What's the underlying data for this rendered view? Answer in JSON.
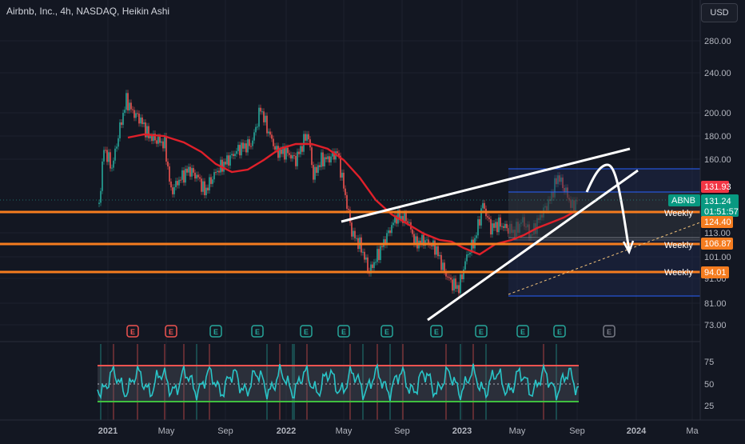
{
  "header": {
    "title": "Airbnb, Inc., 4h, NASDAQ, Heikin Ashi",
    "currency": "USD"
  },
  "price_axis": [
    "280.00",
    "240.00",
    "200.00",
    "180.00",
    "160.00",
    "113.00",
    "101.00",
    "91.00",
    "81.00",
    "73.00"
  ],
  "time_axis": [
    "2021",
    "May",
    "Sep",
    "2022",
    "May",
    "Sep",
    "2023",
    "May",
    "Sep",
    "2024",
    "Ma"
  ],
  "osc_axis": [
    "75",
    "50",
    "25"
  ],
  "tags": {
    "high": "131.93",
    "symbol": "ABNB",
    "last": "131.24",
    "countdown": "01:51:57",
    "level1": "124.40",
    "level2": "106.87",
    "level3": "94.01"
  },
  "weekly_label": "Weekly",
  "event_glyph": "E",
  "colors": {
    "background": "#131722",
    "bull": "#26a69a",
    "bear": "#ef5350",
    "ma": "#e0202a",
    "level": "#f57c1f",
    "oscillator": "#29c4c7",
    "event_red": "#ef5350",
    "event_teal": "#26a69a",
    "event_gray": "#787b86"
  },
  "icons": {
    "event": "earnings-event-icon"
  }
}
